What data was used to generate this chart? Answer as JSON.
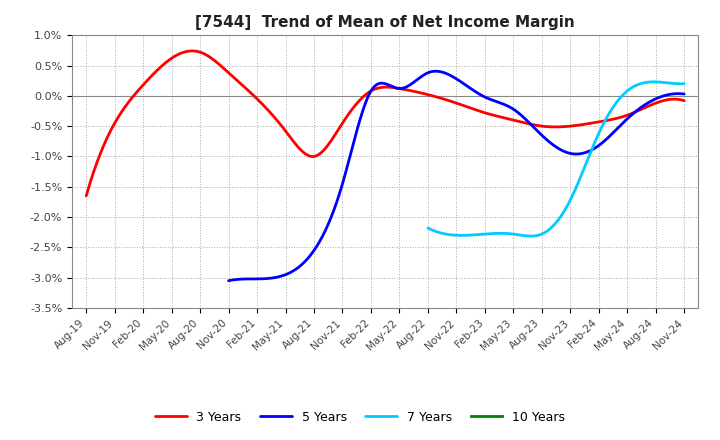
{
  "title": "[7544]  Trend of Mean of Net Income Margin",
  "title_fontsize": 11,
  "background_color": "#ffffff",
  "grid_color": "#aaaaaa",
  "ylim": [
    -3.5,
    1.0
  ],
  "yticks": [
    -3.5,
    -3.0,
    -2.5,
    -2.0,
    -1.5,
    -1.0,
    -0.5,
    0.0,
    0.5,
    1.0
  ],
  "ytick_labels": [
    "-3.5%",
    "-3.0%",
    "-2.5%",
    "-2.0%",
    "-1.5%",
    "-1.0%",
    "-0.5%",
    "0.0%",
    "0.5%",
    "1.0%"
  ],
  "x_labels": [
    "Aug-19",
    "Nov-19",
    "Feb-20",
    "May-20",
    "Aug-20",
    "Nov-20",
    "Feb-21",
    "May-21",
    "Aug-21",
    "Nov-21",
    "Feb-22",
    "May-22",
    "Aug-22",
    "Nov-22",
    "Feb-23",
    "May-23",
    "Aug-23",
    "Nov-23",
    "Feb-24",
    "May-24",
    "Aug-24",
    "Nov-24"
  ],
  "series": [
    {
      "label": "3 Years",
      "color": "#ff0000",
      "data": [
        -1.65,
        -0.45,
        0.18,
        0.62,
        0.72,
        0.38,
        -0.05,
        -0.58,
        -1.0,
        -0.45,
        0.08,
        0.12,
        0.02,
        -0.12,
        -0.28,
        -0.4,
        -0.5,
        -0.5,
        -0.43,
        -0.32,
        -0.12,
        -0.08
      ]
    },
    {
      "label": "5 Years",
      "color": "#0000ff",
      "data": [
        null,
        null,
        null,
        null,
        null,
        -3.05,
        -3.02,
        -2.95,
        -2.55,
        -1.45,
        0.08,
        0.12,
        0.38,
        0.28,
        -0.02,
        -0.22,
        -0.65,
        -0.95,
        -0.82,
        -0.38,
        -0.05,
        0.03
      ]
    },
    {
      "label": "7 Years",
      "color": "#00ccff",
      "data": [
        null,
        null,
        null,
        null,
        null,
        null,
        null,
        null,
        null,
        null,
        null,
        null,
        -2.18,
        -2.3,
        -2.28,
        -2.28,
        -2.28,
        -1.72,
        -0.62,
        0.08,
        0.23,
        0.2
      ]
    },
    {
      "label": "10 Years",
      "color": "#008000",
      "data": [
        null,
        null,
        null,
        null,
        null,
        null,
        null,
        null,
        null,
        null,
        null,
        null,
        null,
        null,
        null,
        null,
        null,
        null,
        null,
        null,
        null,
        null
      ]
    }
  ]
}
